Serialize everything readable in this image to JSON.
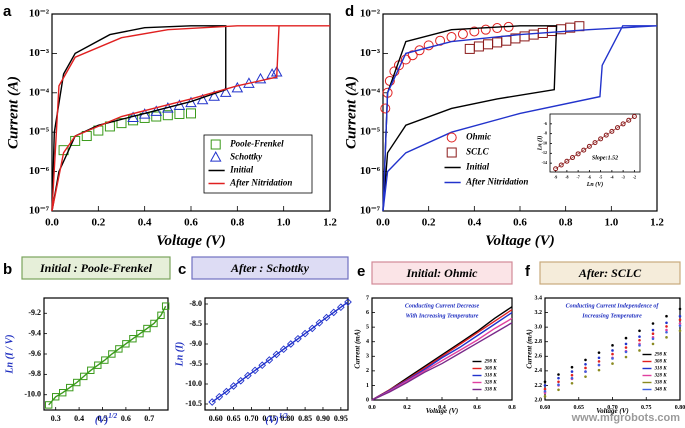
{
  "watermark": "www.mfgrobots.com",
  "chart_data": [
    {
      "type": "line",
      "panel": "a",
      "xlabel": "Voltage (V)",
      "ylabel": "Current (A)",
      "ylog": true,
      "xlim": [
        0,
        1.2
      ],
      "ylim": [
        1e-07,
        0.01
      ],
      "xticks": [
        {
          "value": 0,
          "label": "0.0"
        },
        0.2,
        0.4,
        0.6,
        0.8,
        {
          "value": 1,
          "label": "1.0"
        },
        1.2
      ],
      "yticks": [
        {
          "value": 1e-07,
          "label": "10⁻⁷"
        },
        {
          "value": 1e-06,
          "label": "10⁻⁶"
        },
        {
          "value": 1e-05,
          "label": "10⁻⁵"
        },
        {
          "value": 0.0001,
          "label": "10⁻⁴"
        },
        {
          "value": 0.001,
          "label": "10⁻³"
        },
        {
          "value": 0.01,
          "label": "10⁻²"
        }
      ],
      "legend": "lower right",
      "series": [
        {
          "name": "Poole-Frenkel",
          "color": "#3a9a1a",
          "marker": "square",
          "x": [
            0.05,
            0.1,
            0.15,
            0.2,
            0.25,
            0.3,
            0.35,
            0.4,
            0.45,
            0.5,
            0.55,
            0.6
          ],
          "values": [
            3.5e-06,
            6e-06,
            8e-06,
            1.1e-05,
            1.4e-05,
            1.7e-05,
            2e-05,
            2.3e-05,
            2.5e-05,
            2.7e-05,
            2.9e-05,
            3e-05
          ]
        },
        {
          "name": "Schottky",
          "color": "#2233cc",
          "marker": "triangle",
          "x": [
            0.35,
            0.4,
            0.45,
            0.5,
            0.55,
            0.6,
            0.65,
            0.7,
            0.75,
            0.8,
            0.85,
            0.9,
            0.95,
            0.97
          ],
          "values": [
            2.3e-05,
            2.8e-05,
            3.3e-05,
            4e-05,
            4.7e-05,
            5.5e-05,
            6.5e-05,
            8e-05,
            0.0001,
            0.00013,
            0.00017,
            0.00022,
            0.00029,
            0.00033
          ]
        },
        {
          "name": "Initial",
          "color": "#000000",
          "x": [
            0,
            0.03,
            0.1,
            0.2,
            0.4,
            0.6,
            0.75,
            0.75,
            0.6,
            0.4,
            0.25,
            0.1,
            0.05,
            0.01,
            0
          ],
          "values": [
            1e-07,
            1e-06,
            8e-06,
            1.5e-05,
            3e-05,
            6e-05,
            0.00012,
            0.005,
            0.005,
            0.0045,
            0.003,
            0.001,
            0.0003,
            1e-05,
            1e-07
          ]
        },
        {
          "name": "After Nitridation",
          "color": "#e02020",
          "x": [
            0,
            0.05,
            0.1,
            0.3,
            0.6,
            0.8,
            0.97,
            0.98,
            1.2,
            0.8,
            0.5,
            0.3,
            0.1,
            0.03,
            0
          ],
          "values": [
            1e-07,
            3e-06,
            8e-06,
            2.5e-05,
            7e-05,
            0.00015,
            0.00025,
            0.005,
            0.005,
            0.005,
            0.004,
            0.0025,
            0.0008,
            0.00015,
            1e-07
          ]
        }
      ]
    },
    {
      "type": "line",
      "panel": "b",
      "title": "Initial : Poole-Frenkel",
      "xlabel": "(V)",
      "xlabel_sup": "1/2",
      "ylabel": "Ln (I / V)",
      "xlim": [
        0.25,
        0.78
      ],
      "ylim": [
        -10.15,
        -9.05
      ],
      "xticks": [
        0.3,
        0.4,
        0.5,
        0.6,
        0.7
      ],
      "yticks": [
        -9.2,
        -9.4,
        -9.6,
        -9.8,
        {
          "value": -10,
          "label": "-10.0"
        }
      ],
      "series": [
        {
          "color": "#3a9a1a",
          "marker": "square",
          "line": true,
          "x": [
            0.27,
            0.3,
            0.33,
            0.36,
            0.39,
            0.42,
            0.45,
            0.48,
            0.51,
            0.54,
            0.57,
            0.6,
            0.63,
            0.66,
            0.69,
            0.72,
            0.75,
            0.77
          ],
          "values": [
            -10.1,
            -10.02,
            -9.98,
            -9.93,
            -9.88,
            -9.82,
            -9.76,
            -9.71,
            -9.66,
            -9.6,
            -9.55,
            -9.5,
            -9.45,
            -9.4,
            -9.35,
            -9.3,
            -9.22,
            -9.13
          ]
        }
      ]
    },
    {
      "type": "line",
      "panel": "c",
      "title": "After : Schottky",
      "xlabel": "(V)",
      "xlabel_sup": "1/2",
      "ylabel": "Ln (I)",
      "xlim": [
        0.57,
        0.97
      ],
      "ylim": [
        -10.65,
        -7.85
      ],
      "xticks": [
        {
          "value": 0.6,
          "label": "0.60"
        },
        0.65,
        {
          "value": 0.7,
          "label": "0.70"
        },
        0.75,
        {
          "value": 0.8,
          "label": "0.80"
        },
        0.85,
        {
          "value": 0.9,
          "label": "0.90"
        },
        0.95
      ],
      "yticks": [
        {
          "value": -8,
          "label": "-8.0"
        },
        -8.5,
        {
          "value": -9,
          "label": "-9.0"
        },
        -9.5,
        {
          "value": -10,
          "label": "-10.0"
        },
        -10.5
      ],
      "series": [
        {
          "color": "#2233cc",
          "marker": "diamond",
          "line": true,
          "x": [
            0.59,
            0.61,
            0.63,
            0.65,
            0.67,
            0.69,
            0.71,
            0.73,
            0.75,
            0.77,
            0.79,
            0.81,
            0.83,
            0.85,
            0.87,
            0.89,
            0.91,
            0.93,
            0.95,
            0.97
          ],
          "values": [
            -10.45,
            -10.32,
            -10.19,
            -10.05,
            -9.92,
            -9.79,
            -9.66,
            -9.53,
            -9.4,
            -9.26,
            -9.13,
            -9.0,
            -8.87,
            -8.74,
            -8.61,
            -8.47,
            -8.34,
            -8.21,
            -8.08,
            -7.95
          ]
        }
      ]
    },
    {
      "type": "line",
      "panel": "d",
      "xlabel": "Voltage (V)",
      "ylabel": "Current (A)",
      "ylog": true,
      "xlim": [
        0,
        1.2
      ],
      "ylim": [
        1e-07,
        0.01
      ],
      "xticks": [
        {
          "value": 0,
          "label": "0.0"
        },
        0.2,
        0.4,
        0.6,
        0.8,
        {
          "value": 1,
          "label": "1.0"
        },
        1.2
      ],
      "yticks": [
        {
          "value": 1e-07,
          "label": "10⁻⁷"
        },
        {
          "value": 1e-06,
          "label": "10⁻⁶"
        },
        {
          "value": 1e-05,
          "label": "10⁻⁵"
        },
        {
          "value": 0.0001,
          "label": "10⁻⁴"
        },
        {
          "value": 0.001,
          "label": "10⁻³"
        },
        {
          "value": 0.01,
          "label": "10⁻²"
        }
      ],
      "legend": "lower center",
      "series": [
        {
          "name": "Ohmic",
          "color": "#e02020",
          "marker": "circle",
          "x": [
            0.01,
            0.02,
            0.03,
            0.05,
            0.07,
            0.1,
            0.13,
            0.16,
            0.2,
            0.25,
            0.3,
            0.35,
            0.4,
            0.45,
            0.5,
            0.55
          ],
          "values": [
            4e-05,
            0.0001,
            0.0002,
            0.00035,
            0.0005,
            0.0007,
            0.0009,
            0.0012,
            0.0016,
            0.0021,
            0.0026,
            0.0031,
            0.0036,
            0.004,
            0.0044,
            0.0047
          ]
        },
        {
          "name": "SCLC",
          "color": "#8b1a1a",
          "marker": "square",
          "x": [
            0.38,
            0.42,
            0.46,
            0.5,
            0.54,
            0.58,
            0.62,
            0.66,
            0.7,
            0.74,
            0.78,
            0.82,
            0.86
          ],
          "values": [
            0.0013,
            0.0015,
            0.0017,
            0.0019,
            0.0021,
            0.0024,
            0.0027,
            0.003,
            0.0033,
            0.0037,
            0.0041,
            0.0045,
            0.0049
          ]
        },
        {
          "name": "Initial",
          "color": "#000000",
          "x": [
            0,
            0.02,
            0.1,
            0.3,
            0.5,
            0.75,
            0.76,
            0.6,
            0.3,
            0.1,
            0.02,
            0
          ],
          "values": [
            1e-07,
            3e-06,
            1.5e-05,
            4e-05,
            7e-05,
            0.00012,
            0.005,
            0.005,
            0.004,
            0.002,
            0.0001,
            1e-07
          ]
        },
        {
          "name": "After Nitridation",
          "color": "#2233cc",
          "x": [
            0,
            0.02,
            0.1,
            0.3,
            0.6,
            0.95,
            0.96,
            1.05,
            1.2,
            0.9,
            0.6,
            0.3,
            0.1,
            0.02,
            0
          ],
          "values": [
            1e-07,
            1e-06,
            3e-06,
            1e-05,
            3e-05,
            8e-05,
            0.0005,
            0.005,
            0.005,
            0.004,
            0.003,
            0.002,
            0.001,
            0.0001,
            1e-07
          ]
        }
      ]
    },
    {
      "type": "line",
      "xlabel": "Ln (V)",
      "ylabel": "Ln (I)",
      "annotations": [
        "Slope:1.52"
      ],
      "xlim": [
        -9.5,
        -1.5
      ],
      "ylim": [
        -15.8,
        -4
      ],
      "xticks": [
        -9,
        -8,
        -7,
        -6,
        -5,
        -4,
        -3,
        -2
      ],
      "yticks": [
        -14,
        -12,
        -10,
        -8,
        -6
      ],
      "series": [
        {
          "color": "#8b1a1a",
          "marker": "circle",
          "line": true,
          "x": [
            -9,
            -8.5,
            -8,
            -7.5,
            -7,
            -6.5,
            -6,
            -5.5,
            -5,
            -4.5,
            -4,
            -3.5,
            -3,
            -2.5,
            -2
          ],
          "values": [
            -15.14,
            -14.38,
            -13.62,
            -12.86,
            -12.1,
            -11.34,
            -10.58,
            -9.82,
            -9.06,
            -8.3,
            -7.54,
            -6.78,
            -6.02,
            -5.26,
            -4.5
          ]
        }
      ]
    },
    {
      "type": "line",
      "panel": "e",
      "title": "Initial: Ohmic",
      "xlabel": "Voltage (V)",
      "ylabel": "Current (mA)",
      "annotations": [
        "Conducting Current Decrease",
        "With Increasing Temperature"
      ],
      "xlim": [
        0,
        0.8
      ],
      "ylim": [
        0,
        7
      ],
      "xticks": [
        {
          "value": 0,
          "label": "0.0"
        },
        0.2,
        0.4,
        0.6,
        0.8
      ],
      "yticks": [
        0,
        1,
        2,
        3,
        4,
        5,
        6,
        7
      ],
      "legend": "lower right",
      "x": [
        0,
        0.1,
        0.2,
        0.3,
        0.4,
        0.5,
        0.6,
        0.7,
        0.8
      ],
      "series": [
        {
          "name": "298 K",
          "color": "#000000",
          "values": [
            0,
            0.7,
            1.5,
            2.3,
            3.1,
            3.9,
            4.7,
            5.6,
            6.4
          ]
        },
        {
          "name": "308 K",
          "color": "#e02020",
          "values": [
            0,
            0.7,
            1.4,
            2.2,
            3.0,
            3.8,
            4.6,
            5.4,
            6.2
          ]
        },
        {
          "name": "318 K",
          "color": "#2233cc",
          "values": [
            0,
            0.65,
            1.35,
            2.1,
            2.9,
            3.6,
            4.4,
            5.2,
            6.0
          ]
        },
        {
          "name": "328 K",
          "color": "#e040a0",
          "values": [
            0,
            0.6,
            1.3,
            2.0,
            2.7,
            3.4,
            4.1,
            4.9,
            5.6
          ]
        },
        {
          "name": "338 K",
          "color": "#7a2a8a",
          "values": [
            0,
            0.55,
            1.2,
            1.9,
            2.5,
            3.2,
            3.9,
            4.6,
            5.3
          ]
        }
      ]
    },
    {
      "type": "line",
      "panel": "f",
      "title": "After: SCLC",
      "xlabel": "Voltage (V)",
      "ylabel": "Current (mA)",
      "annotations": [
        "Conducting Current Independence of",
        "Increasing Temperature"
      ],
      "xlim": [
        0.6,
        0.8
      ],
      "ylim": [
        2.0,
        3.4
      ],
      "xticks": [
        {
          "value": 0.6,
          "label": "0.60"
        },
        0.65,
        {
          "value": 0.7,
          "label": "0.70"
        },
        0.75,
        {
          "value": 0.8,
          "label": "0.80"
        }
      ],
      "yticks": [
        {
          "value": 2,
          "label": "2.0"
        },
        2.2,
        2.4,
        2.6,
        2.8,
        {
          "value": 3,
          "label": "3.0"
        },
        3.2,
        3.4
      ],
      "legend": "lower right",
      "x": [
        0.6,
        0.62,
        0.64,
        0.66,
        0.68,
        0.7,
        0.72,
        0.74,
        0.76,
        0.78,
        0.8
      ],
      "series": [
        {
          "name": "298 K",
          "color": "#000000",
          "marker": "dot",
          "values": [
            2.25,
            2.35,
            2.45,
            2.55,
            2.65,
            2.75,
            2.85,
            2.95,
            3.05,
            3.15,
            3.25
          ]
        },
        {
          "name": "308 K",
          "color": "#e02020",
          "marker": "dot",
          "values": [
            2.15,
            2.25,
            2.34,
            2.44,
            2.53,
            2.63,
            2.72,
            2.82,
            2.91,
            3.01,
            3.1
          ]
        },
        {
          "name": "318 K",
          "color": "#2233cc",
          "marker": "dot",
          "values": [
            2.2,
            2.3,
            2.39,
            2.49,
            2.58,
            2.68,
            2.77,
            2.87,
            2.96,
            3.06,
            3.15
          ]
        },
        {
          "name": "328 K",
          "color": "#e040a0",
          "marker": "dot",
          "values": [
            2.1,
            2.2,
            2.29,
            2.39,
            2.48,
            2.58,
            2.67,
            2.77,
            2.86,
            2.96,
            3.05
          ]
        },
        {
          "name": "338 K",
          "color": "#8a8a20",
          "marker": "dot",
          "values": [
            2.05,
            2.14,
            2.23,
            2.32,
            2.41,
            2.5,
            2.59,
            2.68,
            2.77,
            2.86,
            2.95
          ]
        },
        {
          "name": "348 K",
          "color": "#4060e0",
          "marker": "dot",
          "values": [
            2.12,
            2.21,
            2.3,
            2.39,
            2.48,
            2.57,
            2.66,
            2.75,
            2.84,
            2.93,
            3.02
          ]
        }
      ]
    }
  ]
}
